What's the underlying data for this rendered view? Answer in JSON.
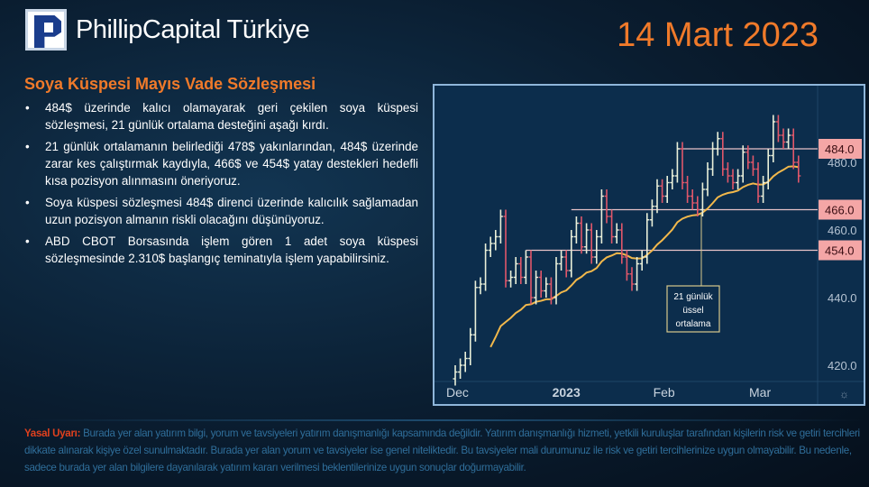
{
  "header": {
    "brand": "PhillipCapital Türkiye",
    "date": "14 Mart 2023"
  },
  "article": {
    "title": "Soya Küspesi Mayıs Vade Sözleşmesi",
    "bullets": [
      "484$ üzerinde kalıcı olamayarak geri çekilen soya küspesi sözleşmesi, 21 günlük ortalama desteğini aşağı kırdı.",
      "21 günlük ortalamanın belirlediği 478$ yakınlarından, 484$ üzerinde zarar kes çalıştırmak kaydıyla, 466$ ve 454$ yatay destekleri hedefli kısa pozisyon alınmasını öneriyoruz.",
      "Soya küspesi sözleşmesi 484$ direnci üzerinde kalıcılık sağlamadan uzun pozisyon almanın riskli olacağını düşünüyoruz.",
      "ABD CBOT Borsasında işlem gören 1 adet soya küspesi sözleşmesinde 2.310$ başlangıç teminatıyla işlem yapabilirsiniz."
    ]
  },
  "chart_data": {
    "type": "ohlc-bar",
    "ylim": [
      415,
      500
    ],
    "y_ticks": [
      "420.0",
      "440.0",
      "460.0",
      "480.0"
    ],
    "x_ticks": [
      "Dec",
      "2023",
      "Feb",
      "Mar"
    ],
    "closes": [
      418,
      420,
      422,
      429,
      443,
      444,
      454,
      456,
      458,
      464,
      445,
      446,
      450,
      446,
      452,
      440,
      446,
      442,
      444,
      440,
      450,
      452,
      448,
      458,
      462,
      455,
      460,
      452,
      458,
      470,
      464,
      458,
      460,
      452,
      447,
      444,
      450,
      452,
      463,
      467,
      473,
      470,
      474,
      476,
      484,
      474,
      470,
      468,
      466,
      472,
      478,
      484,
      487,
      478,
      476,
      474,
      476,
      483,
      480,
      478,
      470,
      474,
      482,
      492,
      488,
      486,
      488,
      480,
      476
    ],
    "month_start_index": {
      "Dec": 0,
      "2023": 21,
      "Feb": 41,
      "Mar": 60
    },
    "ema_period": 21,
    "levels": [
      {
        "value": 484,
        "label": "484.0"
      },
      {
        "value": 466,
        "label": "466.0"
      },
      {
        "value": 454,
        "label": "454.0"
      }
    ],
    "annotation": "21 günlük üssel ortalama",
    "colors": {
      "up": "#e9efd9",
      "down": "#e0576a",
      "ema": "#f2b84b",
      "level": "#e8c3c8",
      "label_bg": "#f4a6a6",
      "bg": "#0c2d4c"
    }
  },
  "disclaimer": {
    "label": "Yasal Uyarı:",
    "text": " Burada yer alan yatırım bilgi, yorum ve tavsiyeleri yatırım danışmanlığı kapsamında değildir. Yatırım danışmanlığı hizmeti, yetkili kuruluşlar tarafından kişilerin risk ve getiri tercihleri dikkate alınarak kişiye özel sunulmaktadır. Burada yer alan yorum ve tavsiyeler ise genel niteliktedir. Bu tavsiyeler mali durumunuz ile risk ve getiri tercihlerinize uygun olmayabilir. Bu nedenle, sadece burada yer alan bilgilere dayanılarak yatırım kararı verilmesi beklentilerinize uygun sonuçlar doğurmayabilir."
  }
}
